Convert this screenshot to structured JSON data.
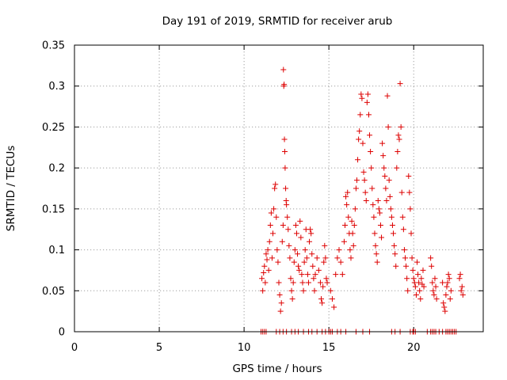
{
  "chart_data": {
    "type": "scatter",
    "title": "Day 191 of 2019, SRMTID for receiver arub",
    "xlabel": "GPS time / hours",
    "ylabel": "SRMTID / TECUs",
    "xlim": [
      0,
      24.1
    ],
    "ylim": [
      0,
      0.35
    ],
    "xticks": [
      0,
      5,
      10,
      15,
      20
    ],
    "yticks": [
      0,
      0.05,
      0.1,
      0.15,
      0.2,
      0.25,
      0.3,
      0.35
    ],
    "grid": true,
    "marker": "+",
    "color": "#dd0000",
    "series": [
      {
        "name": "SRMTID",
        "points": [
          [
            11.05,
            0.065
          ],
          [
            11.1,
            0.05
          ],
          [
            11.15,
            0.072
          ],
          [
            11.2,
            0.08
          ],
          [
            11.25,
            0.06
          ],
          [
            11.3,
            0.095
          ],
          [
            11.35,
            0.088
          ],
          [
            11.4,
            0.1
          ],
          [
            11.45,
            0.075
          ],
          [
            11.5,
            0.11
          ],
          [
            11.55,
            0.13
          ],
          [
            11.6,
            0.145
          ],
          [
            11.65,
            0.09
          ],
          [
            11.7,
            0.12
          ],
          [
            11.75,
            0.15
          ],
          [
            11.8,
            0.175
          ],
          [
            11.85,
            0.18
          ],
          [
            11.9,
            0.14
          ],
          [
            11.95,
            0.1
          ],
          [
            12.0,
            0.085
          ],
          [
            12.05,
            0.06
          ],
          [
            12.1,
            0.045
          ],
          [
            12.15,
            0.025
          ],
          [
            12.2,
            0.035
          ],
          [
            12.25,
            0.11
          ],
          [
            12.3,
            0.13
          ],
          [
            12.32,
            0.32
          ],
          [
            12.34,
            0.3
          ],
          [
            12.36,
            0.302
          ],
          [
            12.38,
            0.235
          ],
          [
            12.4,
            0.22
          ],
          [
            12.42,
            0.2
          ],
          [
            12.45,
            0.175
          ],
          [
            12.48,
            0.16
          ],
          [
            12.5,
            0.155
          ],
          [
            12.55,
            0.14
          ],
          [
            12.6,
            0.125
          ],
          [
            12.65,
            0.105
          ],
          [
            12.7,
            0.09
          ],
          [
            12.75,
            0.065
          ],
          [
            12.8,
            0.05
          ],
          [
            12.85,
            0.04
          ],
          [
            12.9,
            0.06
          ],
          [
            12.95,
            0.085
          ],
          [
            13.0,
            0.1
          ],
          [
            13.05,
            0.13
          ],
          [
            13.1,
            0.12
          ],
          [
            13.15,
            0.095
          ],
          [
            13.2,
            0.08
          ],
          [
            13.25,
            0.075
          ],
          [
            13.3,
            0.135
          ],
          [
            13.35,
            0.115
          ],
          [
            13.4,
            0.07
          ],
          [
            13.45,
            0.06
          ],
          [
            13.5,
            0.05
          ],
          [
            13.55,
            0.085
          ],
          [
            13.6,
            0.1
          ],
          [
            13.65,
            0.125
          ],
          [
            13.7,
            0.09
          ],
          [
            13.75,
            0.07
          ],
          [
            13.8,
            0.06
          ],
          [
            13.85,
            0.11
          ],
          [
            13.9,
            0.125
          ],
          [
            13.95,
            0.12
          ],
          [
            14.0,
            0.095
          ],
          [
            14.05,
            0.08
          ],
          [
            14.1,
            0.065
          ],
          [
            14.15,
            0.05
          ],
          [
            14.2,
            0.07
          ],
          [
            14.3,
            0.09
          ],
          [
            14.4,
            0.075
          ],
          [
            14.5,
            0.06
          ],
          [
            14.55,
            0.04
          ],
          [
            14.6,
            0.035
          ],
          [
            14.65,
            0.055
          ],
          [
            14.7,
            0.085
          ],
          [
            14.75,
            0.105
          ],
          [
            14.8,
            0.09
          ],
          [
            14.85,
            0.065
          ],
          [
            14.9,
            0.06
          ],
          [
            15.1,
            0.05
          ],
          [
            15.2,
            0.04
          ],
          [
            15.3,
            0.03
          ],
          [
            15.4,
            0.07
          ],
          [
            15.5,
            0.09
          ],
          [
            15.6,
            0.1
          ],
          [
            15.7,
            0.085
          ],
          [
            15.8,
            0.07
          ],
          [
            15.9,
            0.11
          ],
          [
            15.95,
            0.13
          ],
          [
            16.0,
            0.165
          ],
          [
            16.05,
            0.155
          ],
          [
            16.1,
            0.17
          ],
          [
            16.15,
            0.14
          ],
          [
            16.2,
            0.12
          ],
          [
            16.25,
            0.1
          ],
          [
            16.3,
            0.09
          ],
          [
            16.35,
            0.135
          ],
          [
            16.4,
            0.12
          ],
          [
            16.45,
            0.105
          ],
          [
            16.5,
            0.13
          ],
          [
            16.55,
            0.15
          ],
          [
            16.6,
            0.175
          ],
          [
            16.65,
            0.185
          ],
          [
            16.7,
            0.21
          ],
          [
            16.75,
            0.235
          ],
          [
            16.8,
            0.245
          ],
          [
            16.85,
            0.265
          ],
          [
            16.9,
            0.29
          ],
          [
            16.95,
            0.285
          ],
          [
            17.0,
            0.23
          ],
          [
            17.05,
            0.195
          ],
          [
            17.1,
            0.185
          ],
          [
            17.15,
            0.17
          ],
          [
            17.2,
            0.16
          ],
          [
            17.25,
            0.28
          ],
          [
            17.3,
            0.29
          ],
          [
            17.35,
            0.265
          ],
          [
            17.4,
            0.24
          ],
          [
            17.45,
            0.22
          ],
          [
            17.5,
            0.2
          ],
          [
            17.55,
            0.175
          ],
          [
            17.6,
            0.155
          ],
          [
            17.65,
            0.14
          ],
          [
            17.7,
            0.12
          ],
          [
            17.75,
            0.105
          ],
          [
            17.8,
            0.095
          ],
          [
            17.85,
            0.085
          ],
          [
            17.9,
            0.16
          ],
          [
            17.95,
            0.15
          ],
          [
            18.0,
            0.145
          ],
          [
            18.05,
            0.13
          ],
          [
            18.1,
            0.115
          ],
          [
            18.15,
            0.23
          ],
          [
            18.2,
            0.215
          ],
          [
            18.25,
            0.2
          ],
          [
            18.3,
            0.19
          ],
          [
            18.35,
            0.175
          ],
          [
            18.4,
            0.16
          ],
          [
            18.45,
            0.288
          ],
          [
            18.5,
            0.25
          ],
          [
            18.55,
            0.185
          ],
          [
            18.6,
            0.165
          ],
          [
            18.65,
            0.15
          ],
          [
            18.7,
            0.14
          ],
          [
            18.75,
            0.13
          ],
          [
            18.8,
            0.12
          ],
          [
            18.85,
            0.105
          ],
          [
            18.9,
            0.095
          ],
          [
            18.95,
            0.08
          ],
          [
            19.0,
            0.2
          ],
          [
            19.05,
            0.22
          ],
          [
            19.1,
            0.24
          ],
          [
            19.15,
            0.235
          ],
          [
            19.2,
            0.303
          ],
          [
            19.25,
            0.25
          ],
          [
            19.3,
            0.17
          ],
          [
            19.35,
            0.14
          ],
          [
            19.4,
            0.125
          ],
          [
            19.45,
            0.1
          ],
          [
            19.5,
            0.09
          ],
          [
            19.55,
            0.08
          ],
          [
            19.6,
            0.065
          ],
          [
            19.65,
            0.05
          ],
          [
            19.7,
            0.19
          ],
          [
            19.75,
            0.17
          ],
          [
            19.8,
            0.15
          ],
          [
            19.85,
            0.12
          ],
          [
            19.9,
            0.09
          ],
          [
            19.95,
            0.075
          ],
          [
            20.0,
            0.065
          ],
          [
            20.05,
            0.06
          ],
          [
            20.1,
            0.055
          ],
          [
            20.15,
            0.045
          ],
          [
            20.2,
            0.085
          ],
          [
            20.25,
            0.07
          ],
          [
            20.3,
            0.06
          ],
          [
            20.35,
            0.05
          ],
          [
            20.4,
            0.04
          ],
          [
            20.45,
            0.065
          ],
          [
            20.5,
            0.058
          ],
          [
            20.55,
            0.075
          ],
          [
            20.6,
            0.055
          ],
          [
            21.0,
            0.09
          ],
          [
            21.05,
            0.08
          ],
          [
            21.1,
            0.06
          ],
          [
            21.15,
            0.05
          ],
          [
            21.2,
            0.045
          ],
          [
            21.25,
            0.065
          ],
          [
            21.3,
            0.055
          ],
          [
            21.35,
            0.04
          ],
          [
            21.7,
            0.06
          ],
          [
            21.75,
            0.035
          ],
          [
            21.8,
            0.03
          ],
          [
            21.85,
            0.025
          ],
          [
            21.9,
            0.045
          ],
          [
            21.95,
            0.055
          ],
          [
            22.0,
            0.06
          ],
          [
            22.05,
            0.07
          ],
          [
            22.1,
            0.065
          ],
          [
            22.15,
            0.04
          ],
          [
            22.2,
            0.05
          ],
          [
            22.7,
            0.065
          ],
          [
            22.75,
            0.07
          ],
          [
            22.8,
            0.05
          ],
          [
            22.85,
            0.055
          ],
          [
            22.9,
            0.045
          ],
          [
            11.0,
            0.0
          ],
          [
            11.1,
            0.0
          ],
          [
            11.2,
            0.0
          ],
          [
            11.3,
            0.0
          ],
          [
            11.9,
            0.0
          ],
          [
            12.1,
            0.0
          ],
          [
            12.3,
            0.0
          ],
          [
            12.5,
            0.0
          ],
          [
            12.8,
            0.0
          ],
          [
            13.0,
            0.0
          ],
          [
            13.2,
            0.0
          ],
          [
            13.5,
            0.0
          ],
          [
            13.8,
            0.0
          ],
          [
            14.0,
            0.0
          ],
          [
            14.3,
            0.0
          ],
          [
            14.6,
            0.0
          ],
          [
            14.8,
            0.0
          ],
          [
            15.0,
            0.0
          ],
          [
            15.1,
            0.0
          ],
          [
            15.2,
            0.0
          ],
          [
            15.5,
            0.0
          ],
          [
            15.7,
            0.0
          ],
          [
            16.0,
            0.0
          ],
          [
            16.6,
            0.0
          ],
          [
            17.0,
            0.0
          ],
          [
            17.4,
            0.0
          ],
          [
            18.7,
            0.0
          ],
          [
            18.9,
            0.0
          ],
          [
            19.2,
            0.0
          ],
          [
            19.8,
            0.0
          ],
          [
            19.95,
            0.0
          ],
          [
            20.0,
            0.0
          ],
          [
            20.1,
            0.0
          ],
          [
            20.8,
            0.0
          ],
          [
            21.0,
            0.0
          ],
          [
            21.1,
            0.0
          ],
          [
            21.2,
            0.0
          ],
          [
            21.3,
            0.0
          ],
          [
            21.5,
            0.0
          ],
          [
            21.7,
            0.0
          ],
          [
            21.9,
            0.0
          ],
          [
            22.0,
            0.0
          ],
          [
            22.1,
            0.0
          ],
          [
            22.2,
            0.0
          ],
          [
            22.3,
            0.0
          ],
          [
            22.4,
            0.0
          ],
          [
            22.5,
            0.0
          ]
        ]
      }
    ]
  }
}
